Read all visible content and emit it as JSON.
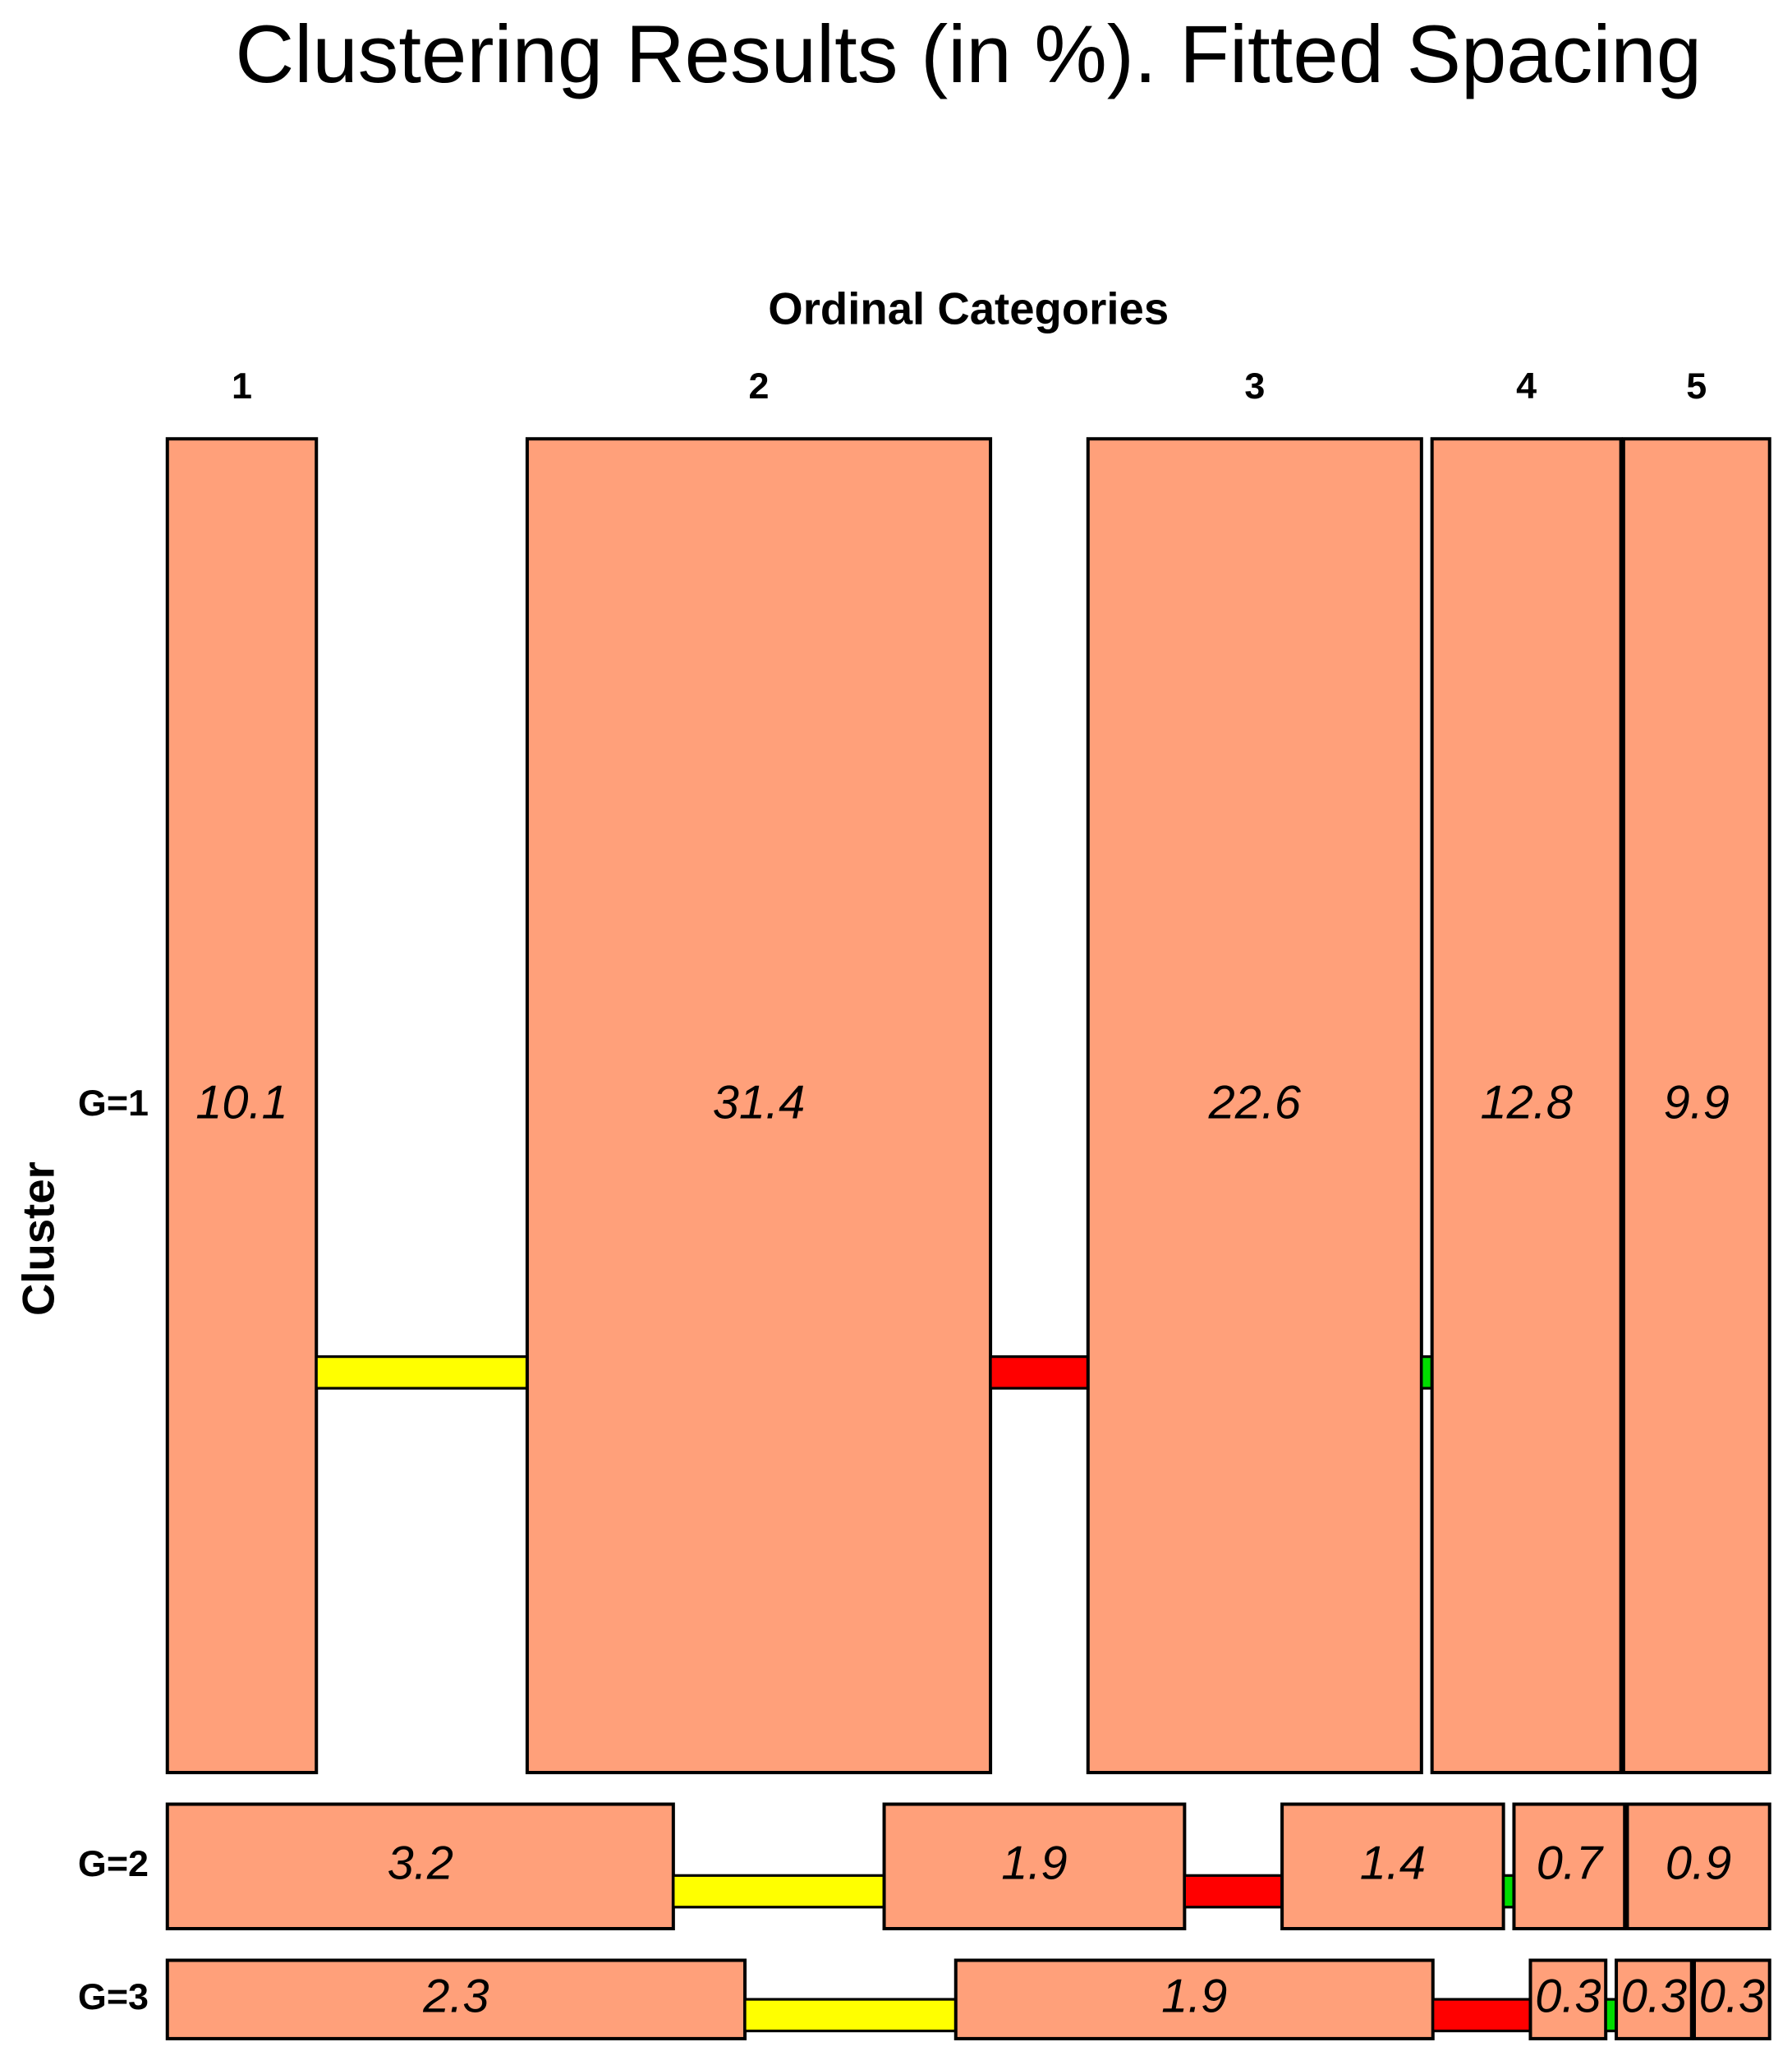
{
  "chart_data": {
    "type": "mosaic",
    "title": "Clustering Results (in %). Fitted Spacing",
    "x_label": "Ordinal Categories",
    "y_label": "Cluster",
    "categories": [
      "1",
      "2",
      "3",
      "4",
      "5"
    ],
    "series": [
      {
        "name": "G=1",
        "values": [
          10.1,
          31.4,
          22.6,
          12.8,
          9.9
        ]
      },
      {
        "name": "G=2",
        "values": [
          3.2,
          1.9,
          1.4,
          0.7,
          0.9
        ]
      },
      {
        "name": "G=3",
        "values": [
          2.3,
          1.9,
          0.3,
          0.3,
          0.3
        ]
      }
    ],
    "color": "#ffa07a",
    "gap_colors": [
      "#ffff00",
      "#ff0000",
      "#00dd00"
    ]
  }
}
